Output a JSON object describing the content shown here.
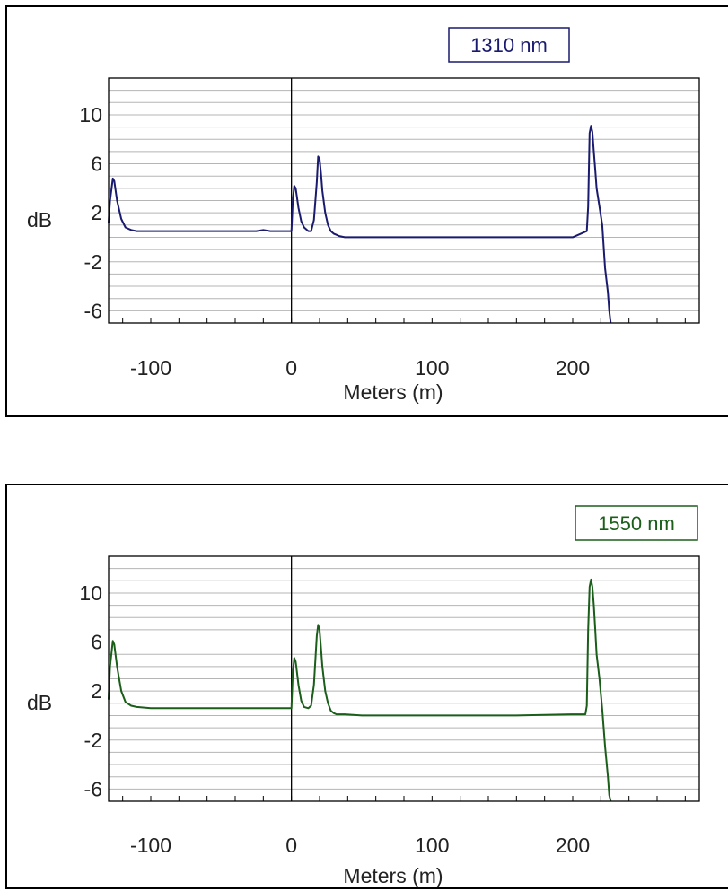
{
  "colors": {
    "trace_1310": "#1a1a6e",
    "trace_1550": "#1a5e1a",
    "grid": "#b5b5b5",
    "zero_line": "#000000"
  },
  "chart_data": [
    {
      "type": "line",
      "wavelength_label": "1310 nm",
      "ylabel": "dB",
      "xlabel": "Meters (m)",
      "xlim": [
        -130,
        290
      ],
      "ylim": [
        -7,
        13
      ],
      "yticks": [
        -6,
        -2,
        2,
        6,
        10
      ],
      "xticks": [
        -100,
        0,
        100,
        200
      ],
      "grid": true,
      "series": [
        {
          "x": [
            -130,
            -129,
            -127,
            -126,
            -124,
            -121,
            -118,
            -114,
            -110,
            -100,
            -80,
            -60,
            -40,
            -30,
            -25,
            -20,
            -15,
            -10,
            -5,
            0,
            1,
            2,
            3,
            5,
            7,
            9,
            12,
            14,
            16,
            18,
            19,
            20,
            21,
            22,
            24,
            26,
            28,
            30,
            32,
            34,
            38,
            50,
            80,
            120,
            160,
            200,
            210,
            211,
            212,
            213,
            214,
            215,
            216,
            217,
            219,
            221,
            223,
            225,
            226,
            227
          ],
          "y": [
            1.2,
            3,
            4.8,
            4.6,
            3,
            1.5,
            0.8,
            0.6,
            0.5,
            0.5,
            0.5,
            0.5,
            0.5,
            0.5,
            0.5,
            0.6,
            0.5,
            0.5,
            0.5,
            0.5,
            3,
            4.2,
            4,
            2.4,
            1.3,
            0.8,
            0.5,
            0.5,
            1.4,
            4.5,
            6.6,
            6.4,
            5.2,
            3.8,
            2,
            1,
            0.5,
            0.3,
            0.2,
            0.1,
            0,
            0,
            0,
            0,
            0,
            0,
            0.5,
            2.5,
            8.5,
            9.1,
            8.6,
            7,
            5.5,
            4,
            2.5,
            1,
            -2.5,
            -4.5,
            -6,
            -7
          ]
        }
      ]
    },
    {
      "type": "line",
      "wavelength_label": "1550 nm",
      "ylabel": "dB",
      "xlabel": "Meters (m)",
      "xlim": [
        -130,
        290
      ],
      "ylim": [
        -7,
        13
      ],
      "yticks": [
        -6,
        -2,
        2,
        6,
        10
      ],
      "xticks": [
        -100,
        0,
        100,
        200
      ],
      "grid": true,
      "series": [
        {
          "x": [
            -130,
            -129,
            -127,
            -126,
            -124,
            -121,
            -118,
            -114,
            -110,
            -100,
            -80,
            -60,
            -40,
            -30,
            -20,
            -10,
            0,
            1,
            2,
            3,
            5,
            7,
            9,
            12,
            14,
            16,
            18,
            19,
            20,
            21,
            22,
            24,
            26,
            28,
            30,
            32,
            34,
            38,
            50,
            80,
            120,
            160,
            200,
            209,
            210,
            211,
            212,
            213,
            214,
            215,
            216,
            217,
            219,
            221,
            223,
            225,
            226,
            227
          ],
          "y": [
            1.3,
            4,
            6.1,
            5.8,
            4,
            2,
            1.1,
            0.8,
            0.7,
            0.6,
            0.6,
            0.6,
            0.6,
            0.6,
            0.6,
            0.6,
            0.6,
            3.5,
            4.7,
            4.4,
            2.5,
            1.2,
            0.7,
            0.6,
            0.8,
            2.5,
            6.5,
            7.4,
            7,
            5.5,
            4,
            2,
            1,
            0.4,
            0.2,
            0.1,
            0.1,
            0.1,
            0,
            0,
            0,
            0,
            0.1,
            0.1,
            0.8,
            7,
            10.5,
            11.1,
            10.5,
            9,
            7,
            5,
            3,
            0.5,
            -2.5,
            -5,
            -6.5,
            -7
          ]
        }
      ]
    }
  ]
}
